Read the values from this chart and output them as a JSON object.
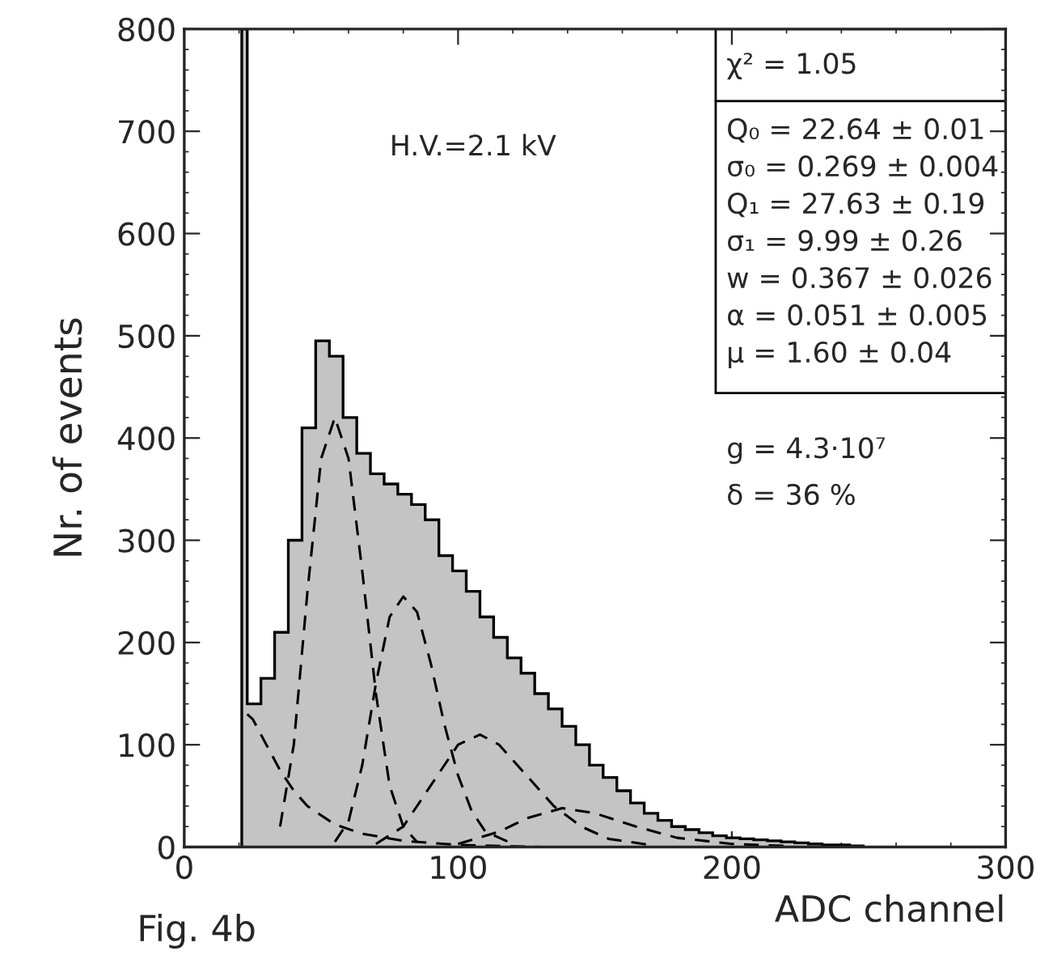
{
  "chart_data": {
    "type": "histogram",
    "xlabel": "ADC channel",
    "ylabel": "Nr. of events",
    "bins": [
      21,
      23,
      28,
      33,
      38,
      43,
      48,
      53,
      58,
      63,
      68,
      73,
      78,
      83,
      88,
      93,
      98,
      103,
      108,
      113,
      118,
      123,
      128,
      133,
      138,
      143,
      148,
      153,
      158,
      163,
      168,
      173,
      178,
      183,
      188,
      193,
      198,
      203,
      208,
      213,
      218,
      223,
      228,
      233,
      238,
      243,
      248
    ],
    "values": [
      800,
      140,
      165,
      210,
      300,
      410,
      495,
      480,
      420,
      385,
      365,
      355,
      345,
      335,
      320,
      285,
      270,
      250,
      225,
      205,
      185,
      170,
      150,
      135,
      118,
      100,
      80,
      68,
      55,
      43,
      33,
      26,
      20,
      17,
      14,
      11,
      9,
      8,
      7,
      6,
      5,
      4,
      3,
      2,
      2,
      1
    ],
    "color": "#c4c4c4",
    "series": [
      {
        "type": "line",
        "color": "#000000",
        "line_style": "dashed",
        "x": [
          35,
          40,
          45,
          50,
          55,
          60,
          65,
          70,
          75,
          80,
          85
        ],
        "values": [
          20,
          100,
          250,
          380,
          420,
          380,
          270,
          150,
          60,
          20,
          5
        ]
      },
      {
        "type": "line",
        "color": "#000000",
        "line_style": "dashed",
        "x": [
          55,
          60,
          65,
          70,
          75,
          80,
          85,
          90,
          95,
          100,
          105,
          110,
          120
        ],
        "values": [
          5,
          25,
          80,
          160,
          225,
          245,
          230,
          180,
          120,
          70,
          35,
          15,
          3
        ]
      },
      {
        "type": "line",
        "color": "#000000",
        "line_style": "dashed",
        "x": [
          70,
          80,
          90,
          100,
          108,
          115,
          125,
          135,
          145,
          155,
          170
        ],
        "values": [
          3,
          20,
          60,
          100,
          110,
          100,
          70,
          40,
          20,
          8,
          2
        ]
      },
      {
        "type": "line",
        "color": "#000000",
        "line_style": "dashed",
        "x": [
          100,
          115,
          125,
          138,
          150,
          165,
          180,
          200,
          220
        ],
        "values": [
          3,
          15,
          28,
          38,
          33,
          20,
          9,
          3,
          1
        ]
      },
      {
        "type": "line",
        "color": "#000000",
        "line_style": "dashed",
        "x": [
          23,
          25,
          30,
          35,
          40,
          45,
          55,
          65,
          80,
          100,
          130
        ],
        "values": [
          130,
          125,
          100,
          75,
          55,
          40,
          22,
          13,
          6,
          2,
          0
        ]
      }
    ],
    "xlim": [
      0,
      300
    ],
    "xticks": [
      0,
      100,
      200,
      300
    ],
    "ylim": [
      0,
      800
    ],
    "yticks": [
      0,
      100,
      200,
      300,
      400,
      500,
      600,
      700,
      800
    ],
    "grid": false,
    "annotations": [
      "χ² = 1.05",
      "Q₀ = 22.64 ± 0.01",
      "σ₀ = 0.269 ± 0.004",
      "Q₁ = 27.63 ± 0.19",
      "σ₁ = 9.99 ± 0.26",
      "w = 0.367 ± 0.026",
      "α = 0.051 ± 0.005",
      "μ = 1.60 ± 0.04",
      "g = 4.3·10⁷",
      "δ = 36 %",
      "H.V.=2.1 kV",
      "Fig. 4b"
    ]
  }
}
